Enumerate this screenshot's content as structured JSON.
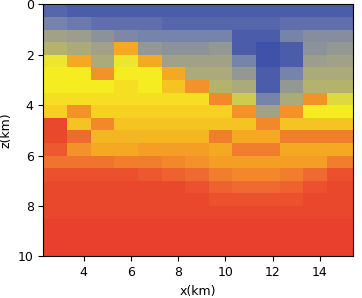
{
  "chart_data": {
    "type": "heatmap",
    "x_label": "x(km)",
    "y_label": "z(km)",
    "xlim": [
      2.3,
      15.4
    ],
    "ylim": [
      10,
      0
    ],
    "xticks": [
      4,
      6,
      8,
      10,
      12,
      14
    ],
    "yticks": [
      0,
      2,
      4,
      6,
      8,
      10
    ],
    "x_edges": [
      2.3,
      3.3,
      4.3,
      5.3,
      6.3,
      7.3,
      8.3,
      9.3,
      10.3,
      11.3,
      12.3,
      13.3,
      14.3,
      15.4
    ],
    "z_edges": [
      0,
      0.5,
      1,
      1.5,
      2,
      2.5,
      3,
      3.5,
      4,
      4.5,
      5,
      5.5,
      6,
      6.5,
      7,
      7.5,
      8,
      8.5,
      9,
      9.5,
      10
    ],
    "clim": [
      1.5,
      5.1
    ],
    "cells": [
      [
        1.7,
        1.6,
        1.6,
        1.6,
        1.6,
        1.6,
        1.6,
        1.6,
        1.6,
        1.6,
        1.6,
        1.6,
        1.6
      ],
      [
        2.0,
        1.9,
        1.8,
        1.8,
        1.8,
        1.7,
        1.7,
        1.7,
        1.7,
        1.7,
        1.8,
        1.8,
        1.8
      ],
      [
        2.6,
        2.5,
        2.3,
        2.1,
        2.0,
        2.0,
        2.0,
        2.0,
        1.6,
        1.6,
        2.0,
        2.2,
        2.2
      ],
      [
        3.0,
        2.8,
        2.6,
        4.0,
        2.4,
        2.3,
        2.3,
        2.4,
        1.6,
        1.5,
        1.6,
        2.3,
        2.4
      ],
      [
        3.4,
        4.0,
        2.8,
        3.4,
        4.0,
        2.6,
        2.6,
        2.6,
        2.0,
        1.5,
        1.6,
        2.5,
        2.6
      ],
      [
        3.5,
        3.5,
        4.2,
        3.5,
        3.5,
        4.0,
        2.8,
        2.8,
        2.4,
        1.6,
        2.0,
        2.8,
        2.8
      ],
      [
        3.5,
        3.5,
        3.5,
        3.6,
        3.5,
        3.8,
        4.2,
        3.0,
        2.8,
        1.6,
        2.4,
        3.0,
        3.0
      ],
      [
        3.6,
        3.6,
        3.6,
        3.6,
        3.6,
        3.6,
        3.6,
        4.3,
        3.2,
        2.0,
        2.8,
        4.2,
        3.3
      ],
      [
        3.7,
        4.2,
        3.7,
        3.7,
        3.7,
        3.7,
        3.7,
        3.7,
        4.2,
        2.6,
        4.2,
        3.5,
        3.5
      ],
      [
        5.0,
        3.8,
        4.3,
        3.8,
        3.8,
        3.8,
        3.8,
        3.8,
        3.8,
        4.3,
        3.8,
        3.8,
        3.8
      ],
      [
        5.0,
        4.6,
        3.9,
        3.9,
        3.9,
        3.9,
        3.9,
        4.4,
        4.0,
        4.0,
        4.4,
        4.4,
        4.4
      ],
      [
        4.8,
        4.2,
        4.0,
        4.0,
        4.1,
        4.1,
        4.1,
        4.0,
        4.4,
        4.4,
        4.0,
        4.0,
        4.0
      ],
      [
        4.5,
        4.5,
        4.5,
        4.4,
        4.4,
        4.3,
        4.2,
        4.1,
        4.1,
        4.1,
        4.1,
        4.1,
        4.4
      ],
      [
        4.9,
        4.9,
        4.9,
        4.9,
        4.8,
        4.7,
        4.6,
        4.4,
        4.3,
        4.3,
        4.4,
        4.6,
        4.9
      ],
      [
        5.0,
        5.0,
        5.0,
        5.0,
        5.0,
        5.0,
        4.9,
        4.7,
        4.6,
        4.6,
        4.7,
        4.9,
        5.0
      ],
      [
        5.0,
        5.0,
        5.0,
        5.0,
        5.0,
        5.0,
        5.0,
        4.9,
        4.9,
        4.9,
        4.9,
        5.0,
        5.0
      ],
      [
        5.0,
        5.0,
        5.0,
        5.0,
        5.0,
        5.0,
        5.0,
        5.0,
        5.0,
        5.0,
        5.0,
        5.0,
        5.0
      ],
      [
        5.1,
        5.1,
        5.1,
        5.1,
        5.1,
        5.1,
        5.1,
        5.1,
        5.1,
        5.1,
        5.1,
        5.1,
        5.1
      ],
      [
        5.1,
        5.1,
        5.1,
        5.1,
        5.1,
        5.1,
        5.1,
        5.1,
        5.1,
        5.1,
        5.1,
        5.1,
        5.1
      ],
      [
        5.1,
        5.1,
        5.1,
        5.1,
        5.1,
        5.1,
        5.1,
        5.1,
        5.1,
        5.1,
        5.1,
        5.1,
        5.1
      ]
    ]
  }
}
